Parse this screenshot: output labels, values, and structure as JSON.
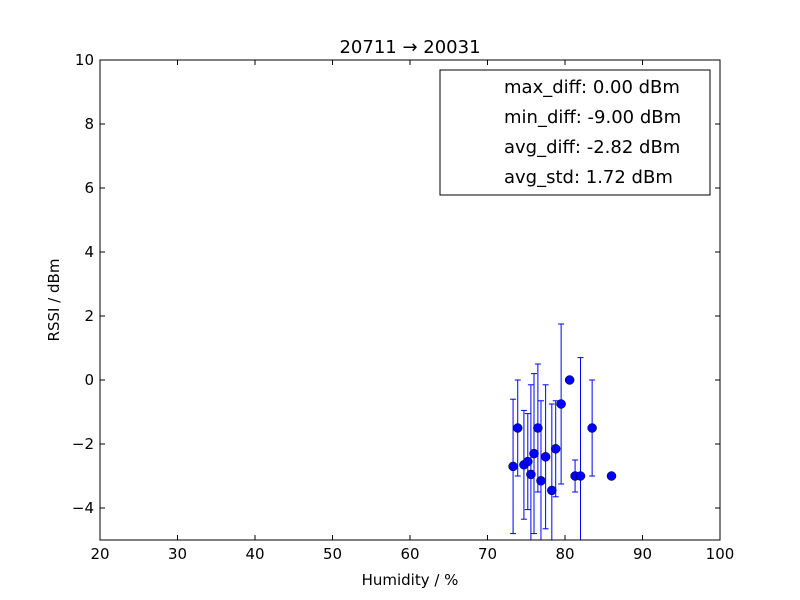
{
  "chart_data": {
    "type": "scatter",
    "title": "20711 → 20031",
    "xlabel": "Humidity / %",
    "ylabel": "RSSI / dBm",
    "xlim": [
      20,
      100
    ],
    "ylim": [
      -5,
      10
    ],
    "xticks": [
      "20",
      "30",
      "40",
      "50",
      "60",
      "70",
      "80",
      "90",
      "100"
    ],
    "yticks": [
      "−4",
      "−2",
      "0",
      "2",
      "4",
      "6",
      "8",
      "10"
    ],
    "grid": false,
    "legend_placement": "upper-right",
    "legend": [
      "max_diff: 0.00 dBm",
      "min_diff: -9.00 dBm",
      "avg_diff: -2.82 dBm",
      "avg_std: 1.72 dBm"
    ],
    "color": "#0000ff",
    "points": [
      {
        "x": 73.3,
        "y": -2.7,
        "err": 2.1
      },
      {
        "x": 73.9,
        "y": -1.5,
        "err": 1.5
      },
      {
        "x": 74.7,
        "y": -2.65,
        "err": 1.7
      },
      {
        "x": 75.2,
        "y": -2.55,
        "err": 1.5
      },
      {
        "x": 75.6,
        "y": -2.95,
        "err": 2.8
      },
      {
        "x": 76.0,
        "y": -2.3,
        "err": 2.5
      },
      {
        "x": 76.5,
        "y": -1.5,
        "err": 2.0
      },
      {
        "x": 76.9,
        "y": -3.15,
        "err": 2.5
      },
      {
        "x": 77.5,
        "y": -2.4,
        "err": 2.25
      },
      {
        "x": 78.3,
        "y": -3.45,
        "err": 2.7
      },
      {
        "x": 78.8,
        "y": -2.15,
        "err": 1.5
      },
      {
        "x": 79.5,
        "y": -0.75,
        "err": 2.5
      },
      {
        "x": 80.6,
        "y": 0.0,
        "err": 0
      },
      {
        "x": 81.3,
        "y": -3.0,
        "err": 0.5
      },
      {
        "x": 82.0,
        "y": -3.0,
        "err": 3.7
      },
      {
        "x": 83.5,
        "y": -1.5,
        "err": 1.5
      },
      {
        "x": 86.0,
        "y": -3.0,
        "err": 0
      }
    ]
  }
}
